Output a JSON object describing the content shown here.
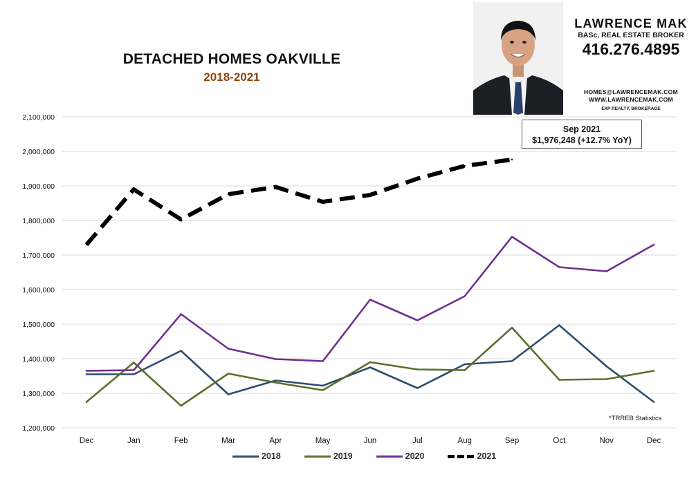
{
  "header": {
    "title": "DETACHED HOMES OAKVILLE",
    "subtitle": "2018-2021",
    "subtitle_color": "#8b4513"
  },
  "agent": {
    "name": "LAWRENCE MAK",
    "title": "BASc, REAL ESTATE BROKER",
    "phone": "416.276.4895",
    "email": "HOMES@LAWRENCEMAK.COM",
    "website": "WWW.LAWRENCEMAK.COM",
    "brokerage": "EXP REALTY, BROKERAGE"
  },
  "callout": {
    "line1": "Sep 2021",
    "line2": "$1,976,248 (+12.7%  YoY)"
  },
  "source_note": "*TRREB Statistics",
  "chart_data": {
    "type": "line",
    "title": "DETACHED HOMES OAKVILLE",
    "subtitle": "2018-2021",
    "xlabel": "",
    "ylabel": "",
    "categories": [
      "Dec",
      "Jan",
      "Feb",
      "Mar",
      "Apr",
      "May",
      "Jun",
      "Jul",
      "Aug",
      "Sep",
      "Oct",
      "Nov",
      "Dec"
    ],
    "ylim": [
      1200000,
      2100000
    ],
    "yticks": [
      1200000,
      1300000,
      1400000,
      1500000,
      1600000,
      1700000,
      1800000,
      1900000,
      2000000,
      2100000
    ],
    "ytick_labels": [
      "1,200,000",
      "1,300,000",
      "1,400,000",
      "1,500,000",
      "1,600,000",
      "1,700,000",
      "1,800,000",
      "1,900,000",
      "2,000,000",
      "2,100,000"
    ],
    "grid": true,
    "legend_position": "bottom",
    "series": [
      {
        "name": "2018",
        "color": "#2e4d6b",
        "dashed": false,
        "values": [
          1355000,
          1355000,
          1423000,
          1297000,
          1337000,
          1322000,
          1375000,
          1315000,
          1384000,
          1393000,
          1497000,
          1378000,
          1275000
        ]
      },
      {
        "name": "2019",
        "color": "#5b6e2a",
        "dashed": false,
        "values": [
          1275000,
          1389000,
          1264000,
          1357000,
          1331000,
          1309000,
          1390000,
          1369000,
          1367000,
          1490000,
          1339000,
          1341000,
          1365000
        ]
      },
      {
        "name": "2020",
        "color": "#6f2f8f",
        "dashed": false,
        "values": [
          1365000,
          1367000,
          1529000,
          1429000,
          1399000,
          1393000,
          1571000,
          1511000,
          1581000,
          1753000,
          1665000,
          1653000,
          1730000
        ]
      },
      {
        "name": "2021",
        "color": "#000000",
        "dashed": true,
        "values": [
          1730000,
          1890000,
          1803000,
          1876000,
          1897000,
          1854000,
          1874000,
          1921000,
          1958000,
          1976248,
          null,
          null,
          null
        ]
      }
    ]
  }
}
